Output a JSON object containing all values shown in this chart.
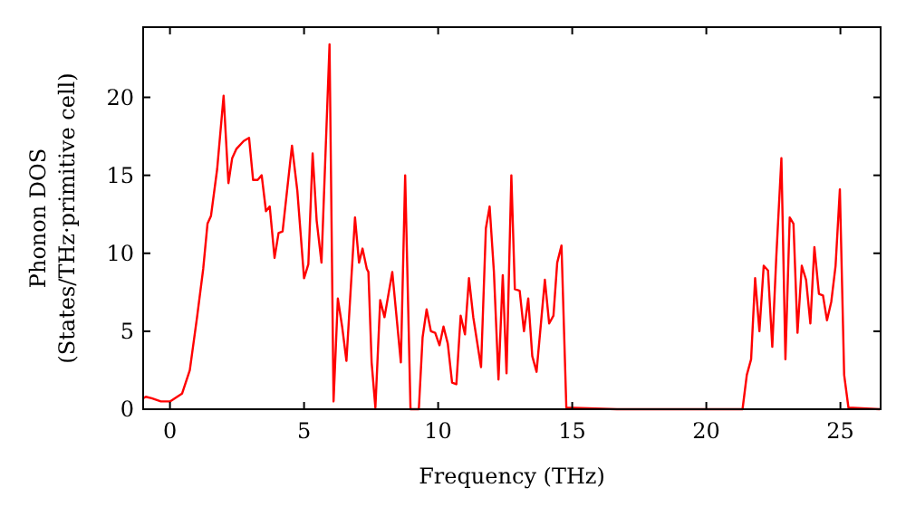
{
  "chart_data": {
    "type": "line",
    "xlabel": "Frequency (THz)",
    "ylabel": "Phonon DOS\n(States/THz·primitive cell)",
    "xlim": [
      -1,
      26.5
    ],
    "ylim": [
      0,
      24.5
    ],
    "xticks": [
      0,
      5,
      10,
      15,
      20,
      25
    ],
    "yticks": [
      0,
      5,
      10,
      15,
      20
    ],
    "grid": false,
    "marker": "none",
    "line_style": "solid",
    "series": [
      {
        "color": "#ff0000",
        "x": [
          -1,
          -0.9,
          -0.68,
          -0.34,
          0,
          0.45,
          0.74,
          1.01,
          1.24,
          1.4,
          1.53,
          1.76,
          2.0,
          2.18,
          2.32,
          2.48,
          2.75,
          2.95,
          3.1,
          3.27,
          3.42,
          3.58,
          3.72,
          3.9,
          4.05,
          4.2,
          4.55,
          4.75,
          5.0,
          5.16,
          5.32,
          5.47,
          5.65,
          5.95,
          6.1,
          6.26,
          6.42,
          6.58,
          6.9,
          7.05,
          7.18,
          7.34,
          7.4,
          7.52,
          7.66,
          7.84,
          8.0,
          8.29,
          8.61,
          8.77,
          8.97,
          9.28,
          9.42,
          9.57,
          9.73,
          9.89,
          10.05,
          10.2,
          10.36,
          10.52,
          10.68,
          10.84,
          11.0,
          11.15,
          11.31,
          11.6,
          11.78,
          11.92,
          12.08,
          12.25,
          12.41,
          12.55,
          12.73,
          12.86,
          13.04,
          13.2,
          13.36,
          13.51,
          13.67,
          13.98,
          14.14,
          14.3,
          14.44,
          14.6,
          14.78,
          16.67,
          21.35,
          21.51,
          21.67,
          21.82,
          21.98,
          22.14,
          22.3,
          22.46,
          22.61,
          22.8,
          22.95,
          23.11,
          23.25,
          23.4,
          23.56,
          23.72,
          23.88,
          24.03,
          24.2,
          24.35,
          24.5,
          24.66,
          24.82,
          24.98,
          25.14,
          25.3,
          26.47
        ],
        "values": [
          0.7,
          0.8,
          0.7,
          0.5,
          0.5,
          1.0,
          2.5,
          5.9,
          9.0,
          11.9,
          12.4,
          15.4,
          20.1,
          14.5,
          16.1,
          16.7,
          17.2,
          17.4,
          14.7,
          14.7,
          15.0,
          12.7,
          13.0,
          9.7,
          11.3,
          11.4,
          16.9,
          14.0,
          8.4,
          9.3,
          16.4,
          12.1,
          9.4,
          23.4,
          0.5,
          7.1,
          5.3,
          3.1,
          12.3,
          9.4,
          10.3,
          9.0,
          8.8,
          3.0,
          0.1,
          7.0,
          5.9,
          8.8,
          3.0,
          15.0,
          0,
          0,
          4.6,
          6.4,
          5.0,
          4.9,
          4.1,
          5.3,
          4.2,
          1.7,
          1.6,
          6.0,
          4.8,
          8.4,
          5.9,
          2.7,
          11.6,
          13.0,
          8.8,
          1.9,
          8.6,
          2.3,
          15.0,
          7.7,
          7.6,
          5.0,
          7.1,
          3.4,
          2.4,
          8.3,
          5.5,
          6.0,
          9.4,
          10.5,
          0.1,
          0,
          0,
          2.2,
          3.2,
          8.4,
          5.0,
          9.2,
          8.9,
          4.0,
          9.8,
          16.1,
          3.2,
          12.3,
          11.9,
          4.9,
          9.2,
          8.3,
          5.5,
          10.4,
          7.4,
          7.3,
          5.7,
          6.9,
          9.2,
          14.1,
          2.2,
          0.1,
          0
        ]
      }
    ]
  }
}
